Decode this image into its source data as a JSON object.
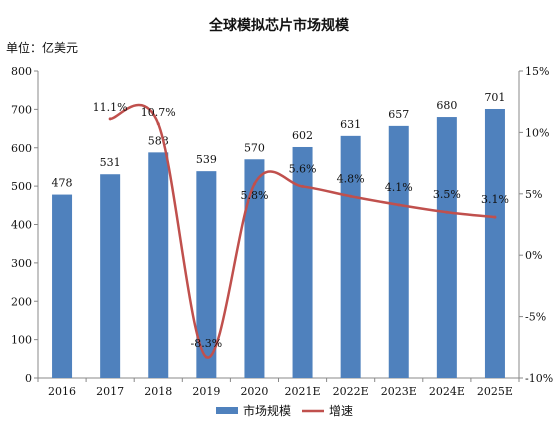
{
  "chart_data": {
    "type": "bar+line",
    "title": "全球模拟芯片市场规模",
    "unit_label": "单位：亿美元",
    "categories": [
      "2016",
      "2017",
      "2018",
      "2019",
      "2020",
      "2021E",
      "2022E",
      "2023E",
      "2024E",
      "2025E"
    ],
    "series": [
      {
        "name": "市场规模",
        "type": "bar",
        "axis": "left",
        "color": "#4f81bd",
        "values": [
          478,
          531,
          588,
          539,
          570,
          602,
          631,
          657,
          680,
          701
        ]
      },
      {
        "name": "增速",
        "type": "line",
        "axis": "right",
        "color": "#c0504d",
        "values": [
          null,
          11.1,
          10.7,
          -8.3,
          5.8,
          5.6,
          4.8,
          4.1,
          3.5,
          3.1
        ],
        "labels": [
          "",
          "11.1%",
          "10.7%",
          "-8.3%",
          "5.8%",
          "5.6%",
          "4.8%",
          "4.1%",
          "3.5%",
          "3.1%"
        ]
      }
    ],
    "y_left": {
      "min": 0,
      "max": 800,
      "ticks": [
        "0",
        "100",
        "200",
        "300",
        "400",
        "500",
        "600",
        "700",
        "800"
      ]
    },
    "y_right": {
      "min": -10,
      "max": 15,
      "ticks": [
        "-10%",
        "-5%",
        "0%",
        "5%",
        "10%",
        "15%"
      ]
    },
    "grid": false,
    "legend": "bottom"
  }
}
